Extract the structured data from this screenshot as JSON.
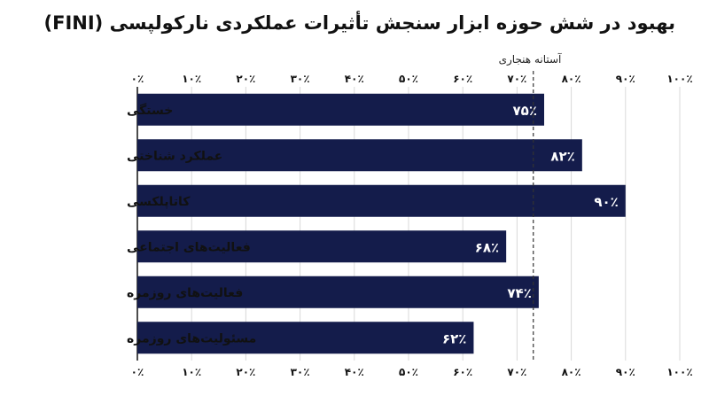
{
  "chart_data": {
    "type": "bar",
    "orientation": "horizontal",
    "title": "بهبود در شش حوزه ابزار سنجش تأثیرات عملکردی نارکولپسی (FINI)",
    "categories": [
      "خستگی",
      "عملکرد شناختی",
      "کاتاپلکسی",
      "فعالیت‌های اجتماعی",
      "فعالیت‌های روزمره",
      "مسئولیت‌های روزمره"
    ],
    "values": [
      75,
      82,
      90,
      68,
      74,
      62
    ],
    "data_labels": [
      "۷۵٪",
      "۸۲٪",
      "۹۰٪",
      "۶۸٪",
      "۷۴٪",
      "۶۲٪"
    ],
    "xlim": [
      0,
      100
    ],
    "x_ticks": [
      0,
      10,
      20,
      30,
      40,
      50,
      60,
      70,
      80,
      90,
      100
    ],
    "x_tick_labels": [
      "۰٪",
      "۱۰٪",
      "۲۰٪",
      "۳۰٪",
      "۴۰٪",
      "۵۰٪",
      "۶۰٪",
      "۷۰٪",
      "۸۰٪",
      "۹۰٪",
      "۱۰۰٪"
    ],
    "grid": true,
    "reference_line": {
      "value": 73,
      "label": "آستانه هنجاری"
    },
    "colors": {
      "bar": "#141c4b",
      "grid": "#d9d9d9",
      "axis": "#111111"
    }
  }
}
